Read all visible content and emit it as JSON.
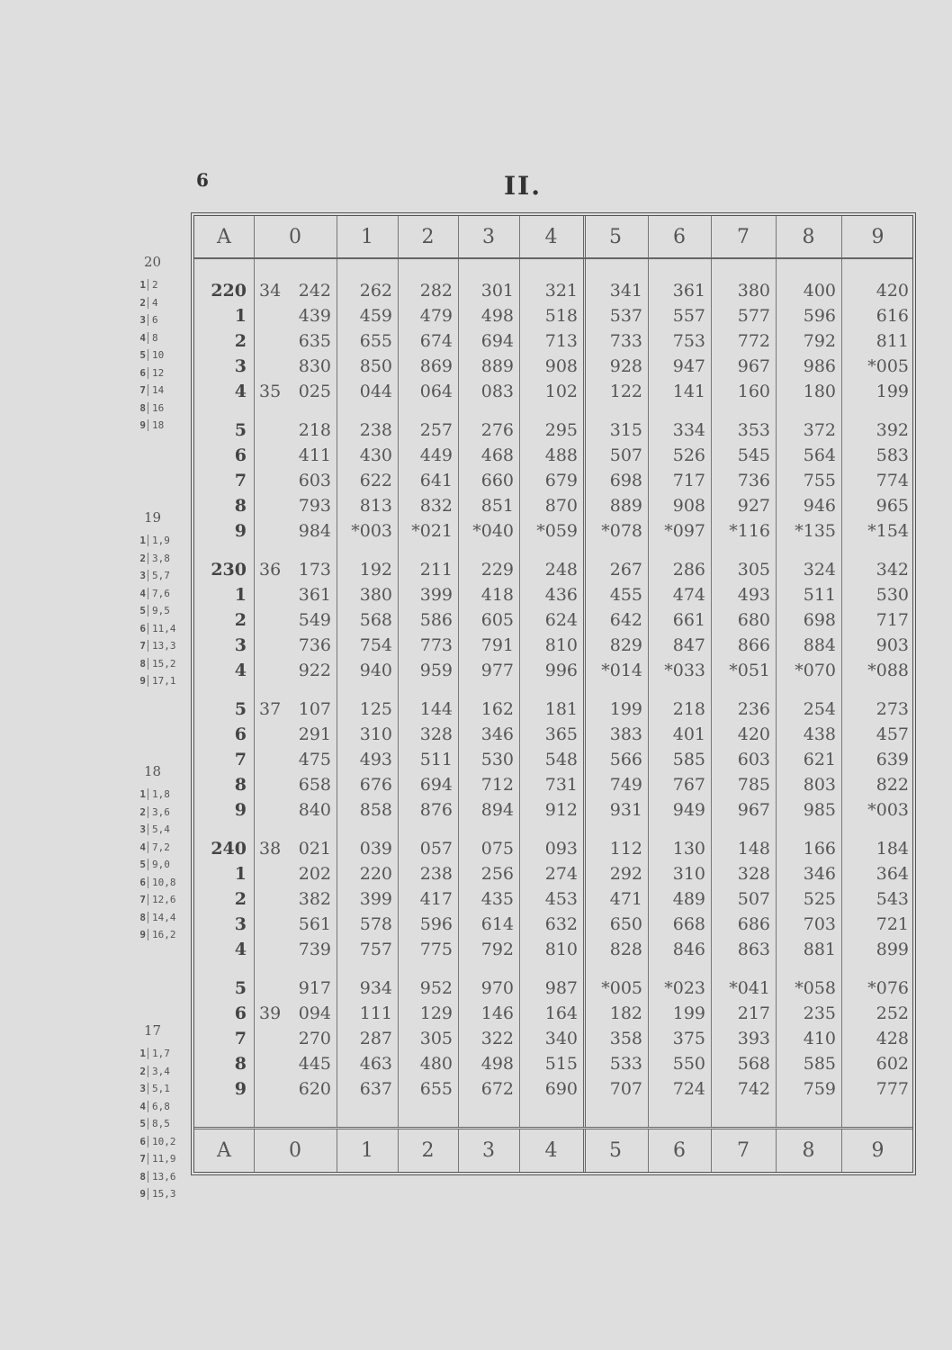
{
  "page_number": "6",
  "table_title": "II.",
  "header": [
    "A",
    "0",
    "1",
    "2",
    "3",
    "4",
    "5",
    "6",
    "7",
    "8",
    "9"
  ],
  "rows": [
    {
      "n": "220",
      "pre": "34",
      "c": [
        "242",
        "262",
        "282",
        "301",
        "321",
        "341",
        "361",
        "380",
        "400",
        "420"
      ]
    },
    {
      "n": "1",
      "pre": "",
      "c": [
        "439",
        "459",
        "479",
        "498",
        "518",
        "537",
        "557",
        "577",
        "596",
        "616"
      ]
    },
    {
      "n": "2",
      "pre": "",
      "c": [
        "635",
        "655",
        "674",
        "694",
        "713",
        "733",
        "753",
        "772",
        "792",
        "811"
      ]
    },
    {
      "n": "3",
      "pre": "",
      "c": [
        "830",
        "850",
        "869",
        "889",
        "908",
        "928",
        "947",
        "967",
        "986",
        "*005"
      ]
    },
    {
      "n": "4",
      "pre": "35",
      "c": [
        "025",
        "044",
        "064",
        "083",
        "102",
        "122",
        "141",
        "160",
        "180",
        "199"
      ]
    },
    {
      "n": "5",
      "pre": "",
      "c": [
        "218",
        "238",
        "257",
        "276",
        "295",
        "315",
        "334",
        "353",
        "372",
        "392"
      ]
    },
    {
      "n": "6",
      "pre": "",
      "c": [
        "411",
        "430",
        "449",
        "468",
        "488",
        "507",
        "526",
        "545",
        "564",
        "583"
      ]
    },
    {
      "n": "7",
      "pre": "",
      "c": [
        "603",
        "622",
        "641",
        "660",
        "679",
        "698",
        "717",
        "736",
        "755",
        "774"
      ]
    },
    {
      "n": "8",
      "pre": "",
      "c": [
        "793",
        "813",
        "832",
        "851",
        "870",
        "889",
        "908",
        "927",
        "946",
        "965"
      ]
    },
    {
      "n": "9",
      "pre": "",
      "c": [
        "984",
        "*003",
        "*021",
        "*040",
        "*059",
        "*078",
        "*097",
        "*116",
        "*135",
        "*154"
      ]
    },
    {
      "n": "230",
      "pre": "36",
      "c": [
        "173",
        "192",
        "211",
        "229",
        "248",
        "267",
        "286",
        "305",
        "324",
        "342"
      ]
    },
    {
      "n": "1",
      "pre": "",
      "c": [
        "361",
        "380",
        "399",
        "418",
        "436",
        "455",
        "474",
        "493",
        "511",
        "530"
      ]
    },
    {
      "n": "2",
      "pre": "",
      "c": [
        "549",
        "568",
        "586",
        "605",
        "624",
        "642",
        "661",
        "680",
        "698",
        "717"
      ]
    },
    {
      "n": "3",
      "pre": "",
      "c": [
        "736",
        "754",
        "773",
        "791",
        "810",
        "829",
        "847",
        "866",
        "884",
        "903"
      ]
    },
    {
      "n": "4",
      "pre": "",
      "c": [
        "922",
        "940",
        "959",
        "977",
        "996",
        "*014",
        "*033",
        "*051",
        "*070",
        "*088"
      ]
    },
    {
      "n": "5",
      "pre": "37",
      "c": [
        "107",
        "125",
        "144",
        "162",
        "181",
        "199",
        "218",
        "236",
        "254",
        "273"
      ]
    },
    {
      "n": "6",
      "pre": "",
      "c": [
        "291",
        "310",
        "328",
        "346",
        "365",
        "383",
        "401",
        "420",
        "438",
        "457"
      ]
    },
    {
      "n": "7",
      "pre": "",
      "c": [
        "475",
        "493",
        "511",
        "530",
        "548",
        "566",
        "585",
        "603",
        "621",
        "639"
      ]
    },
    {
      "n": "8",
      "pre": "",
      "c": [
        "658",
        "676",
        "694",
        "712",
        "731",
        "749",
        "767",
        "785",
        "803",
        "822"
      ]
    },
    {
      "n": "9",
      "pre": "",
      "c": [
        "840",
        "858",
        "876",
        "894",
        "912",
        "931",
        "949",
        "967",
        "985",
        "*003"
      ]
    },
    {
      "n": "240",
      "pre": "38",
      "c": [
        "021",
        "039",
        "057",
        "075",
        "093",
        "112",
        "130",
        "148",
        "166",
        "184"
      ]
    },
    {
      "n": "1",
      "pre": "",
      "c": [
        "202",
        "220",
        "238",
        "256",
        "274",
        "292",
        "310",
        "328",
        "346",
        "364"
      ]
    },
    {
      "n": "2",
      "pre": "",
      "c": [
        "382",
        "399",
        "417",
        "435",
        "453",
        "471",
        "489",
        "507",
        "525",
        "543"
      ]
    },
    {
      "n": "3",
      "pre": "",
      "c": [
        "561",
        "578",
        "596",
        "614",
        "632",
        "650",
        "668",
        "686",
        "703",
        "721"
      ]
    },
    {
      "n": "4",
      "pre": "",
      "c": [
        "739",
        "757",
        "775",
        "792",
        "810",
        "828",
        "846",
        "863",
        "881",
        "899"
      ]
    },
    {
      "n": "5",
      "pre": "",
      "c": [
        "917",
        "934",
        "952",
        "970",
        "987",
        "*005",
        "*023",
        "*041",
        "*058",
        "*076"
      ]
    },
    {
      "n": "6",
      "pre": "39",
      "c": [
        "094",
        "111",
        "129",
        "146",
        "164",
        "182",
        "199",
        "217",
        "235",
        "252"
      ]
    },
    {
      "n": "7",
      "pre": "",
      "c": [
        "270",
        "287",
        "305",
        "322",
        "340",
        "358",
        "375",
        "393",
        "410",
        "428"
      ]
    },
    {
      "n": "8",
      "pre": "",
      "c": [
        "445",
        "463",
        "480",
        "498",
        "515",
        "533",
        "550",
        "568",
        "585",
        "602"
      ]
    },
    {
      "n": "9",
      "pre": "",
      "c": [
        "620",
        "637",
        "655",
        "672",
        "690",
        "707",
        "724",
        "742",
        "759",
        "777"
      ]
    }
  ],
  "proportional_parts": [
    {
      "diff": "20",
      "parts": [
        "2",
        "4",
        "6",
        "8",
        "10",
        "12",
        "14",
        "16",
        "18"
      ]
    },
    {
      "diff": "19",
      "parts": [
        "1,9",
        "3,8",
        "5,7",
        "7,6",
        "9,5",
        "11,4",
        "13,3",
        "15,2",
        "17,1"
      ]
    },
    {
      "diff": "18",
      "parts": [
        "1,8",
        "3,6",
        "5,4",
        "7,2",
        "9,0",
        "10,8",
        "12,6",
        "14,4",
        "16,2"
      ]
    },
    {
      "diff": "17",
      "parts": [
        "1,7",
        "3,4",
        "5,1",
        "6,8",
        "8,5",
        "10,2",
        "11,9",
        "13,6",
        "15,3"
      ]
    }
  ]
}
